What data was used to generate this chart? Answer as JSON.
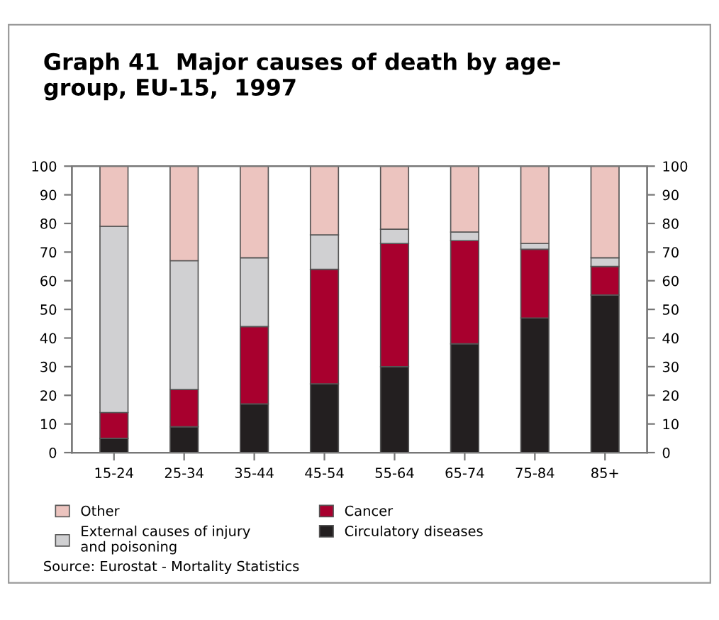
{
  "chart_data": {
    "type": "bar",
    "stacked": true,
    "title": "Graph 41  Major causes of death by age-\ngroup, EU-15,  1997",
    "categories": [
      "15-24",
      "25-34",
      "35-44",
      "45-54",
      "55-64",
      "65-74",
      "75-84",
      "85+"
    ],
    "series": [
      {
        "name": "Circulatory diseases",
        "color": "#231f20",
        "values": [
          5,
          9,
          17,
          24,
          30,
          38,
          47,
          55
        ]
      },
      {
        "name": "Cancer",
        "color": "#a8002e",
        "values": [
          9,
          13,
          27,
          40,
          43,
          36,
          24,
          10
        ]
      },
      {
        "name": "External causes of injury and poisoning",
        "color": "#d0d0d2",
        "values": [
          65,
          45,
          24,
          12,
          5,
          3,
          2,
          3
        ]
      },
      {
        "name": "Other",
        "color": "#ecc4bf",
        "values": [
          21,
          33,
          32,
          24,
          22,
          23,
          27,
          32
        ]
      }
    ],
    "ylim": [
      0,
      100
    ],
    "yticks": [
      0,
      10,
      20,
      30,
      40,
      50,
      60,
      70,
      80,
      90,
      100
    ],
    "y2lim": [
      0,
      100
    ],
    "y2ticks": [
      0,
      10,
      20,
      30,
      40,
      50,
      60,
      70,
      80,
      90,
      100
    ],
    "grid": false,
    "legend": "bottom",
    "annotations": [
      "Source: Eurostat - Mortality Statistics"
    ]
  }
}
